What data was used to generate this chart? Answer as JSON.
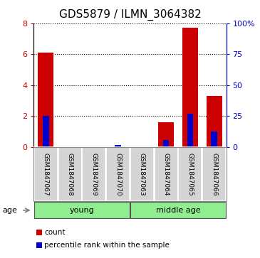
{
  "title": "GDS5879 / ILMN_3064382",
  "samples": [
    "GSM1847067",
    "GSM1847068",
    "GSM1847069",
    "GSM1847070",
    "GSM1847063",
    "GSM1847064",
    "GSM1847065",
    "GSM1847066"
  ],
  "red_values": [
    6.1,
    0.0,
    0.0,
    0.0,
    0.0,
    1.6,
    7.7,
    3.3
  ],
  "blue_values_pct": [
    25.0,
    0.0,
    0.0,
    1.5,
    0.0,
    5.5,
    27.0,
    12.5
  ],
  "groups": [
    {
      "label": "young",
      "indices": [
        0,
        1,
        2,
        3
      ]
    },
    {
      "label": "middle age",
      "indices": [
        4,
        5,
        6,
        7
      ]
    }
  ],
  "age_label": "age",
  "left_ylim": [
    0,
    8
  ],
  "right_ylim": [
    0,
    100
  ],
  "left_yticks": [
    0,
    2,
    4,
    6,
    8
  ],
  "right_yticks": [
    0,
    25,
    50,
    75,
    100
  ],
  "right_yticklabels": [
    "0",
    "25",
    "50",
    "75",
    "100%"
  ],
  "left_color": "#cc0000",
  "right_color": "#0000cc",
  "group_bg_color": "#90ee90",
  "sample_bg_color": "#d4d4d4",
  "legend_red_label": "count",
  "legend_blue_label": "percentile rank within the sample"
}
